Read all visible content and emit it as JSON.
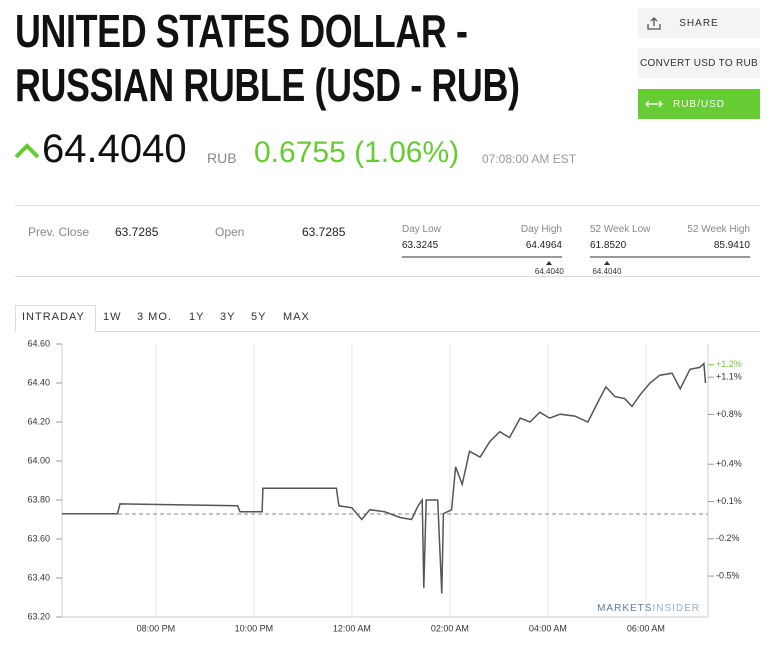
{
  "header": {
    "title_lines": [
      "UNITED STATES DOLLAR -",
      "RUSSIAN RUBLE (USD - RUB)"
    ]
  },
  "buttons": [
    "SHARE",
    "CONVERT USD TO RUB",
    "RUB/USD"
  ],
  "quote": {
    "price": "64.4040",
    "currency": "RUB",
    "change": "0.6755 (1.06%)",
    "time": "07:08:00 AM EST"
  },
  "stats": {
    "prev_close": {
      "label": "Prev. Close",
      "value": "63.7285"
    },
    "open": {
      "label": "Open",
      "value": "63.7285"
    },
    "ranges": [
      {
        "low_label": "Day Low",
        "low": "63.3245",
        "high_label": "Day High",
        "high": "64.4964",
        "marker": "64.4040"
      },
      {
        "low_label": "52 Week Low",
        "low": "61.8520",
        "high_label": "52 Week High",
        "high": "85.9410",
        "marker": "64.4040"
      }
    ]
  },
  "tabs": [
    "INTRADAY",
    "1W",
    "3 MO.",
    "1Y",
    "3Y",
    "5Y",
    "MAX"
  ],
  "chart_data": {
    "type": "line",
    "color": "#555555",
    "x": [
      "06:05 PM",
      "07:13 PM",
      "07:16 PM",
      "09:40 PM",
      "09:43 PM",
      "10:10 PM",
      "10:11 PM",
      "11:41 PM",
      "11:44 PM",
      "12:00 AM",
      "12:12 AM",
      "12:22 AM",
      "12:40 AM",
      "12:59 AM",
      "01:13 AM",
      "01:21 AM",
      "01:26 AM",
      "01:28 AM",
      "01:31 AM",
      "01:45 AM",
      "01:50 AM",
      "01:52 AM",
      "02:02 AM",
      "02:07 AM",
      "02:15 AM",
      "02:24 AM",
      "02:37 AM",
      "02:49 AM",
      "03:01 AM",
      "03:13 AM",
      "03:26 AM",
      "03:38 AM",
      "03:50 AM",
      "04:02 AM",
      "04:15 AM",
      "04:33 AM",
      "04:49 AM",
      "05:01 AM",
      "05:11 AM",
      "05:22 AM",
      "05:34 AM",
      "05:43 AM",
      "05:53 AM",
      "06:05 AM",
      "06:17 AM",
      "06:32 AM",
      "06:42 AM",
      "06:54 AM",
      "07:06 AM",
      "07:11 AM",
      "07:13 AM"
    ],
    "values": [
      63.73,
      63.73,
      63.78,
      63.77,
      63.74,
      63.74,
      63.86,
      63.86,
      63.77,
      63.76,
      63.7,
      63.75,
      63.74,
      63.71,
      63.7,
      63.77,
      63.8,
      63.35,
      63.8,
      63.8,
      63.32,
      63.73,
      63.75,
      63.97,
      63.88,
      64.05,
      64.02,
      64.1,
      64.15,
      64.12,
      64.22,
      64.2,
      64.25,
      64.22,
      64.24,
      64.23,
      64.2,
      64.3,
      64.38,
      64.33,
      64.32,
      64.28,
      64.34,
      64.4,
      64.44,
      64.45,
      64.37,
      64.47,
      64.48,
      64.5,
      64.4
    ],
    "xlim": [
      "06:05 PM",
      "07:16 AM"
    ],
    "xticks": [
      "08:00 PM",
      "10:00 PM",
      "12:00 AM",
      "02:00 AM",
      "04:00 AM",
      "06:00 AM"
    ],
    "ylim": [
      63.2,
      64.6
    ],
    "yticks": [
      {
        "value": 63.2,
        "label": "63.20"
      },
      {
        "value": 63.4,
        "label": "63.40"
      },
      {
        "value": 63.6,
        "label": "63.60"
      },
      {
        "value": 63.8,
        "label": "63.80"
      },
      {
        "value": 64.0,
        "label": "64.00"
      },
      {
        "value": 64.2,
        "label": "64.20"
      },
      {
        "value": 64.4,
        "label": "64.40"
      },
      {
        "value": 64.6,
        "label": "64.60"
      }
    ],
    "y2lim": [
      -0.829,
      1.367
    ],
    "y2ticks": [
      {
        "value": 1.1,
        "label": "+1.1%"
      },
      {
        "value": 0.8,
        "label": "+0.8%"
      },
      {
        "value": 0.4,
        "label": "+0.4%"
      },
      {
        "value": 0.1,
        "label": "+0.1%"
      },
      {
        "value": -0.2,
        "label": "-0.2%"
      },
      {
        "value": -0.5,
        "label": "-0.5%"
      }
    ],
    "annotations": [
      {
        "value": 1.2,
        "label": "+1.2%",
        "color": "#66cc33"
      }
    ],
    "reference_line": 63.7285,
    "grid": true,
    "watermark": [
      "MARKETS",
      "INSIDER"
    ]
  }
}
